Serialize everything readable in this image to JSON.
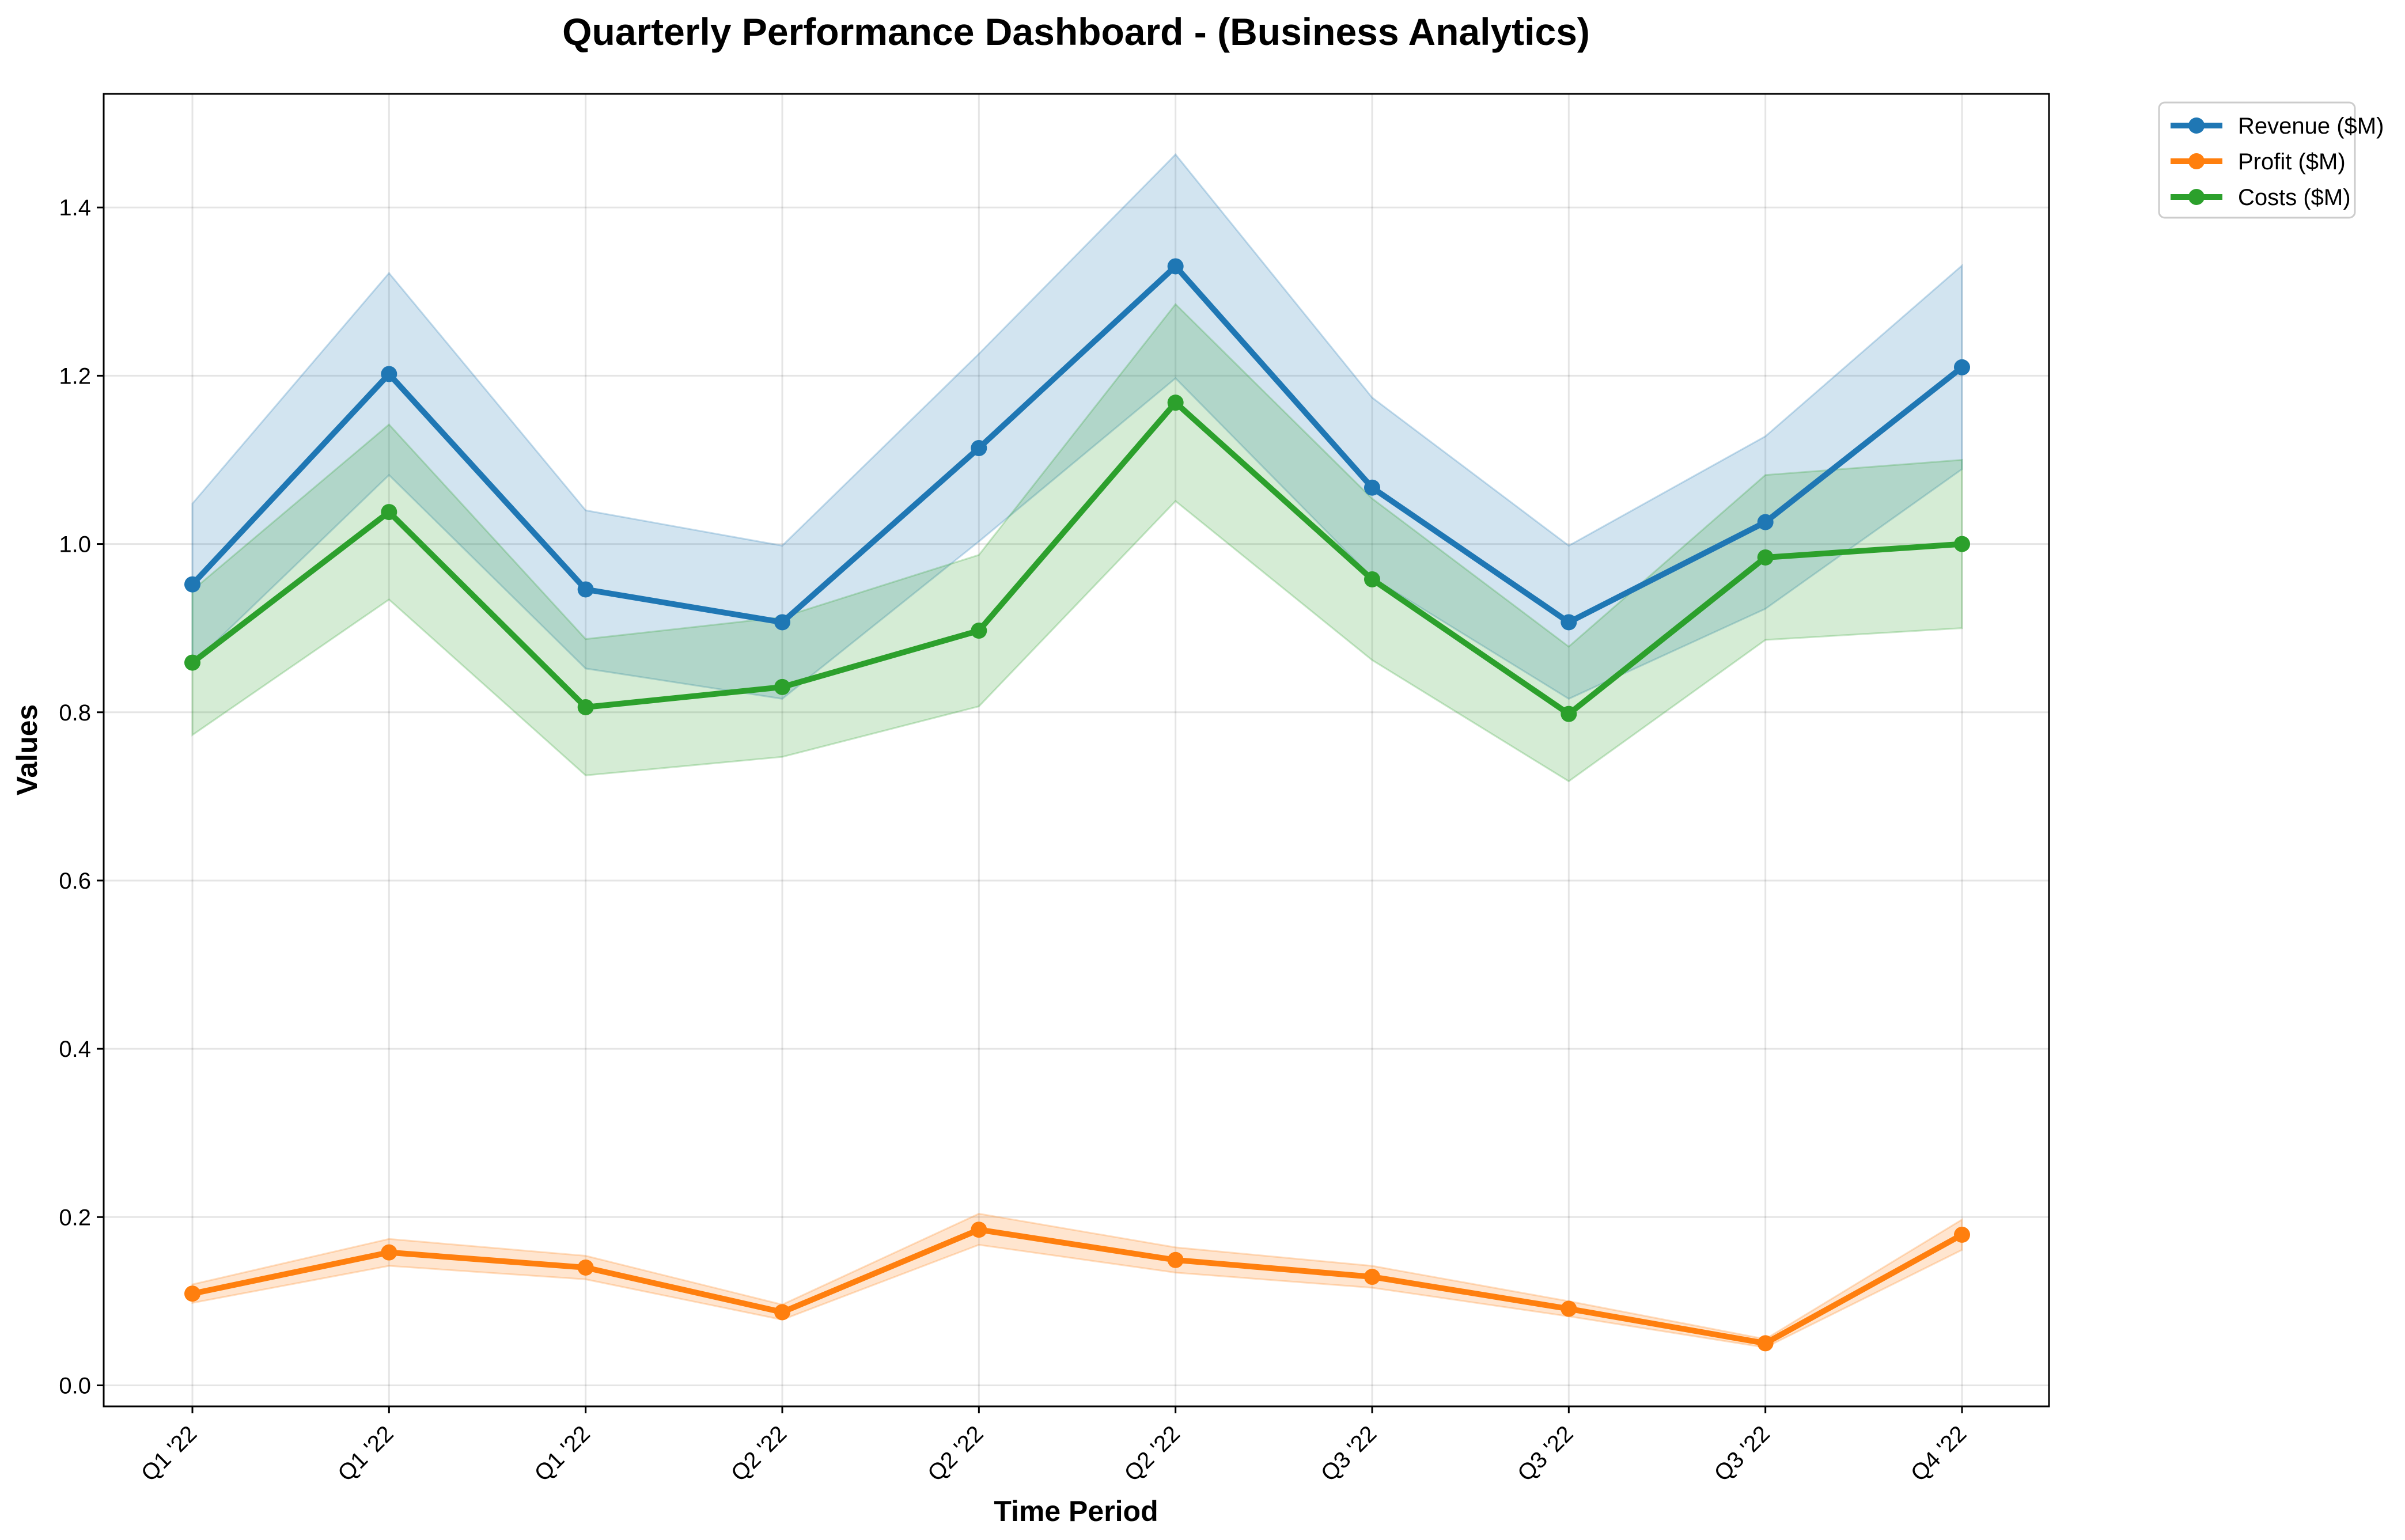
{
  "chart_data": {
    "type": "line",
    "title": "Quarterly Performance Dashboard - (Business Analytics)",
    "xlabel": "Time Period",
    "ylabel": "Values",
    "categories": [
      "Q1 '22",
      "Q1 '22",
      "Q1 '22",
      "Q2 '22",
      "Q2 '22",
      "Q2 '22",
      "Q3 '22",
      "Q3 '22",
      "Q3 '22",
      "Q4 '22"
    ],
    "ylim": [
      -0.025,
      1.535
    ],
    "yticks": [
      0.0,
      0.2,
      0.4,
      0.6,
      0.8,
      1.0,
      1.2,
      1.4
    ],
    "ytick_labels": [
      "0.0",
      "0.2",
      "0.4",
      "0.6",
      "0.8",
      "1.0",
      "1.2",
      "1.4"
    ],
    "grid": true,
    "legend_position": "upper right, outside plot area",
    "series": [
      {
        "name": "Revenue ($M)",
        "color": "#1f77b4",
        "values": [
          0.952,
          1.202,
          0.946,
          0.907,
          1.114,
          1.33,
          1.067,
          0.907,
          1.026,
          1.21
        ],
        "band_upper": [
          1.048,
          1.322,
          1.04,
          0.998,
          1.226,
          1.463,
          1.174,
          0.998,
          1.128,
          1.331
        ],
        "band_lower": [
          0.857,
          1.082,
          0.852,
          0.816,
          1.003,
          1.197,
          0.96,
          0.816,
          0.923,
          1.089
        ]
      },
      {
        "name": "Profit ($M)",
        "color": "#ff7f0e",
        "values": [
          0.109,
          0.158,
          0.14,
          0.087,
          0.185,
          0.149,
          0.129,
          0.091,
          0.05,
          0.179
        ],
        "band_upper": [
          0.12,
          0.174,
          0.154,
          0.096,
          0.204,
          0.164,
          0.142,
          0.1,
          0.055,
          0.197
        ],
        "band_lower": [
          0.098,
          0.142,
          0.126,
          0.078,
          0.167,
          0.134,
          0.116,
          0.082,
          0.045,
          0.161
        ]
      },
      {
        "name": "Costs ($M)",
        "color": "#2ca02c",
        "values": [
          0.859,
          1.038,
          0.806,
          0.83,
          0.897,
          1.168,
          0.958,
          0.798,
          0.984,
          1.0
        ],
        "band_upper": [
          0.945,
          1.142,
          0.887,
          0.913,
          0.987,
          1.285,
          1.054,
          0.878,
          1.082,
          1.1
        ],
        "band_lower": [
          0.773,
          0.934,
          0.725,
          0.747,
          0.807,
          1.051,
          0.862,
          0.718,
          0.886,
          0.9
        ]
      }
    ]
  }
}
